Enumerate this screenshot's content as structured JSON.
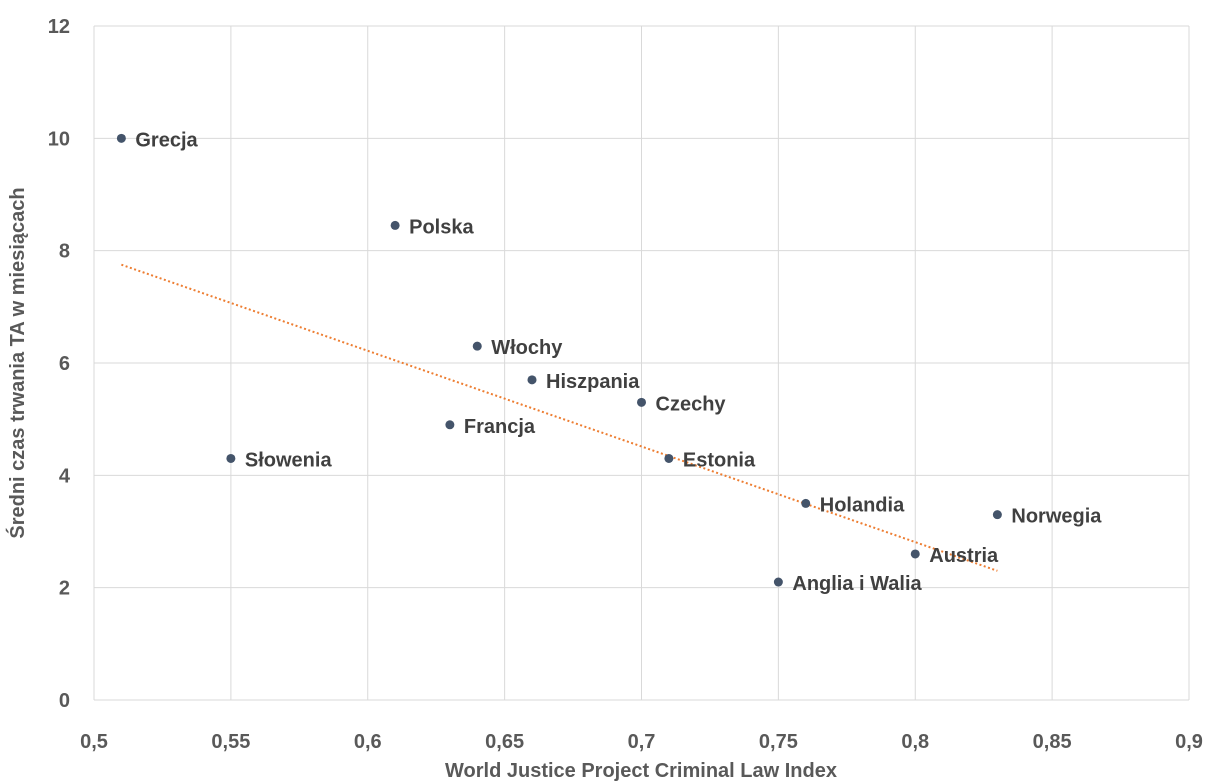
{
  "chart_data": {
    "type": "scatter",
    "xlabel": "World Justice Project Criminal Law Index",
    "ylabel": "Średni czas trwania TA w miesiącach",
    "xlim": [
      0.5,
      0.9
    ],
    "ylim": [
      0,
      12
    ],
    "x_ticks": [
      0.5,
      0.55,
      0.6,
      0.65,
      0.7,
      0.75,
      0.8,
      0.85,
      0.9
    ],
    "x_tick_labels": [
      "0,5",
      "0,55",
      "0,6",
      "0,65",
      "0,7",
      "0,75",
      "0,8",
      "0,85",
      "0,9"
    ],
    "y_ticks": [
      0,
      2,
      4,
      6,
      8,
      10,
      12
    ],
    "y_tick_labels": [
      "0",
      "2",
      "4",
      "6",
      "8",
      "10",
      "12"
    ],
    "grid": true,
    "points": [
      {
        "label": "Grecja",
        "x": 0.51,
        "y": 10.0
      },
      {
        "label": "Polska",
        "x": 0.61,
        "y": 8.45
      },
      {
        "label": "Włochy",
        "x": 0.64,
        "y": 6.3
      },
      {
        "label": "Hiszpania",
        "x": 0.66,
        "y": 5.7
      },
      {
        "label": "Czechy",
        "x": 0.7,
        "y": 5.3
      },
      {
        "label": "Francja",
        "x": 0.63,
        "y": 4.9
      },
      {
        "label": "Słowenia",
        "x": 0.55,
        "y": 4.3
      },
      {
        "label": "Estonia",
        "x": 0.71,
        "y": 4.3
      },
      {
        "label": "Holandia",
        "x": 0.76,
        "y": 3.5
      },
      {
        "label": "Norwegia",
        "x": 0.83,
        "y": 3.3
      },
      {
        "label": "Austria",
        "x": 0.8,
        "y": 2.6
      },
      {
        "label": "Anglia i Walia",
        "x": 0.75,
        "y": 2.1
      }
    ],
    "trendline": {
      "type": "linear",
      "from": [
        0.51,
        7.75
      ],
      "to": [
        0.83,
        2.3
      ]
    },
    "colors": {
      "point": "#44546a",
      "trendline": "#ed7d31",
      "grid": "#d9d9d9",
      "text": "#595959"
    }
  }
}
